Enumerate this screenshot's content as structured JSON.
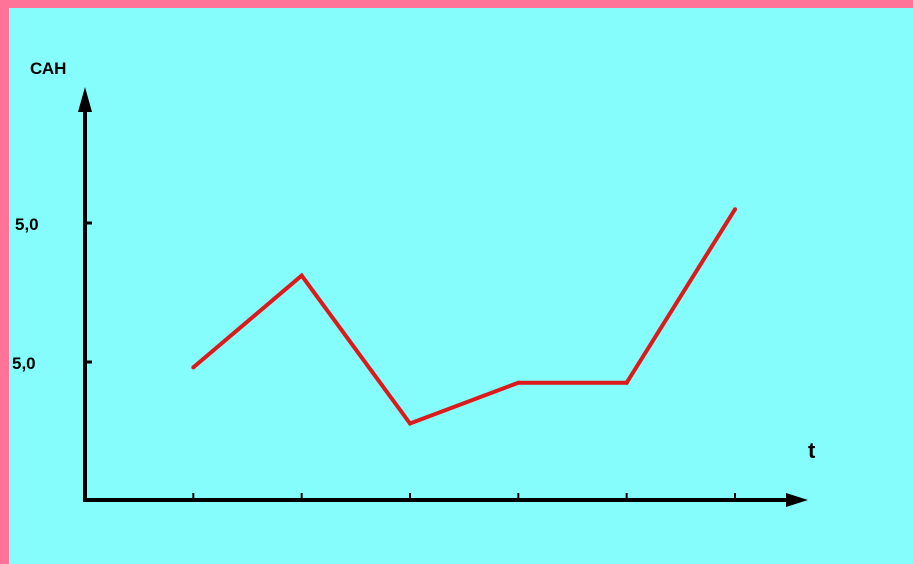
{
  "colors": {
    "frame": "#ff7399",
    "background": "#86fdfd",
    "axis": "#000000",
    "series": "#dd1a1a"
  },
  "chart_data": {
    "type": "line",
    "ylabel": "САН",
    "xlabel": "t",
    "y_tick_labels": [
      "5,0",
      "5,0"
    ],
    "x": [
      1,
      2,
      3,
      4,
      5,
      6
    ],
    "series": [
      {
        "values": [
          2.6,
          4.4,
          1.5,
          2.3,
          2.3,
          5.7
        ]
      }
    ],
    "xlim": [
      0,
      6.6
    ],
    "ylim": [
      0,
      8
    ]
  }
}
